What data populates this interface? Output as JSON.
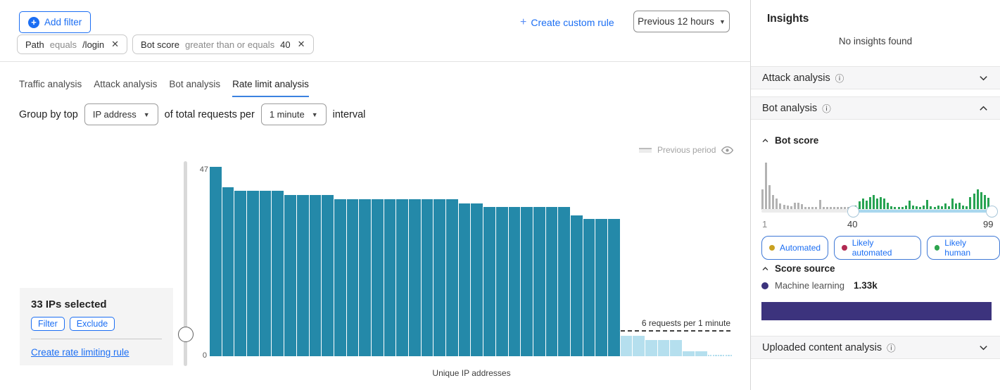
{
  "header": {
    "add_filter_label": "Add filter",
    "filters": [
      {
        "field": "Path",
        "op": "equals",
        "value": "/login"
      },
      {
        "field": "Bot score",
        "op": "greater than or equals",
        "value": "40"
      }
    ],
    "create_custom_rule_label": "Create custom rule",
    "time_range_label": "Previous 12 hours"
  },
  "tabs": [
    {
      "label": "Traffic analysis",
      "active": false
    },
    {
      "label": "Attack analysis",
      "active": false
    },
    {
      "label": "Bot analysis",
      "active": false
    },
    {
      "label": "Rate limit analysis",
      "active": true
    }
  ],
  "group_by": {
    "prefix": "Group by top",
    "group_value": "IP address",
    "middle": "of total requests per",
    "interval_value": "1 minute",
    "suffix": "interval"
  },
  "legend": {
    "previous_period_label": "Previous period"
  },
  "selection_panel": {
    "title": "33 IPs selected",
    "filter_label": "Filter",
    "exclude_label": "Exclude",
    "link_label": "Create rate limiting rule"
  },
  "chart_data": [
    {
      "type": "bar",
      "title": "",
      "xlabel": "Unique IP addresses",
      "ylabel": "",
      "ylim": [
        0,
        47
      ],
      "y_ticks": [
        "47",
        "0"
      ],
      "grid": false,
      "threshold": {
        "value": 6,
        "label": "6 requests per 1 minute"
      },
      "series": [
        {
          "name": "above-threshold-selected",
          "color": "#2489a9",
          "values": [
            47,
            42,
            41,
            41,
            41,
            41,
            40,
            40,
            40,
            40,
            39,
            39,
            39,
            39,
            39,
            39,
            39,
            39,
            39,
            39,
            38,
            38,
            37,
            37,
            37,
            37,
            37,
            37,
            37,
            35,
            34,
            34,
            34
          ]
        },
        {
          "name": "below-threshold",
          "color": "#b5dfee",
          "values": [
            5,
            5,
            4,
            4,
            4,
            1.3,
            1.3
          ]
        },
        {
          "name": "below-threshold-tail",
          "color": "#b5dfee",
          "values": [
            0.3,
            0.3,
            0.3,
            0.3,
            0.3,
            0.3,
            0.3,
            0.3,
            0.3,
            0.3
          ]
        }
      ]
    },
    {
      "type": "histogram",
      "title": "Bot score",
      "x_ticks": [
        "1",
        "40",
        "99"
      ],
      "slider": {
        "min": 1,
        "max": 99,
        "range_start": 40,
        "range_end": 99
      },
      "series": [
        {
          "name": "scores-below-40-unselected",
          "color": "#b3b3b3",
          "values": [
            28,
            66,
            34,
            20,
            15,
            8,
            6,
            5,
            4,
            9,
            9,
            7,
            3,
            3,
            3,
            3,
            13,
            3,
            3,
            3,
            3,
            3,
            3,
            3,
            3,
            3
          ]
        },
        {
          "name": "scores-40-to-99-selected",
          "color": "#27a352",
          "values": [
            5,
            11,
            15,
            12,
            17,
            20,
            15,
            17,
            15,
            9,
            4,
            3,
            3,
            3,
            5,
            12,
            5,
            4,
            3,
            5,
            13,
            4,
            3,
            5,
            4,
            8,
            4,
            15,
            8,
            9,
            5,
            4,
            17,
            22,
            28,
            24,
            20,
            16
          ]
        }
      ]
    }
  ],
  "sidebar": {
    "title": "Insights",
    "empty_message": "No insights found",
    "sections": {
      "attack": {
        "label": "Attack analysis"
      },
      "bot": {
        "label": "Bot analysis"
      },
      "uploaded": {
        "label": "Uploaded content analysis"
      }
    },
    "bot_score": {
      "title": "Bot score",
      "badges": [
        {
          "label": "Automated",
          "dot_color": "#c9a121"
        },
        {
          "label": "Likely automated",
          "dot_color": "#b12a52"
        },
        {
          "label": "Likely human",
          "dot_color": "#2da44e"
        }
      ]
    },
    "score_source": {
      "title": "Score source",
      "rows": [
        {
          "label": "Machine learning",
          "value": "1.33k",
          "color": "#3c337d"
        }
      ]
    }
  },
  "colors": {
    "accent_blue": "#1b6ef3",
    "bar_teal": "#2489a9",
    "bar_light_blue": "#b5dfee",
    "hist_gray": "#b3b3b3",
    "hist_green": "#27a352",
    "score_purple": "#3c337d"
  }
}
